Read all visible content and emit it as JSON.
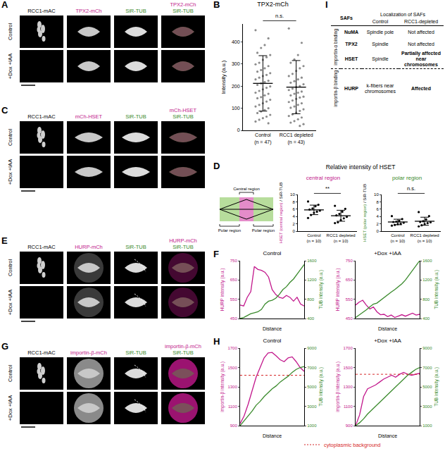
{
  "figure": {
    "image_panels": [
      {
        "letter": "A",
        "columns": [
          [
            "RCC1-mAC"
          ],
          [
            "TPX2-mCh"
          ],
          [
            "SiR-TUB"
          ],
          [
            "TPX2-mCh",
            "SiR-TUB"
          ]
        ],
        "rows": [
          "Control",
          "+Dox +IAA"
        ]
      },
      {
        "letter": "C",
        "columns": [
          [
            "RCC1-mAC"
          ],
          [
            "mCh-HSET"
          ],
          [
            "SiR-TUB"
          ],
          [
            "mCh-HSET",
            "SiR-TUB"
          ]
        ],
        "rows": [
          "Control",
          "+Dox +IAA"
        ]
      },
      {
        "letter": "E",
        "columns": [
          [
            "RCC1-mAC"
          ],
          [
            "HURP-mCh"
          ],
          [
            "SiR-TUB"
          ],
          [
            "HURP-mCh",
            "SiR-TUB"
          ]
        ],
        "rows": [
          "Control",
          "+Dox +IAA"
        ]
      },
      {
        "letter": "G",
        "columns": [
          [
            "RCC1-mAC"
          ],
          [
            "importin-β-mCh"
          ],
          [
            "SiR-TUB"
          ],
          [
            "importin-β-mCh",
            "SiR-TUB"
          ]
        ],
        "rows": [
          "Control",
          "+Dox +IAA"
        ]
      }
    ],
    "schematic": {
      "letter": "D",
      "title": "Relative intensity of HSET",
      "central_label": "Central region",
      "polar_labels": [
        "Polar region",
        "Polar region"
      ]
    },
    "table": {
      "letter": "I",
      "header": {
        "saf": "SAFs",
        "localization": "Localization of SAFs",
        "control": "Control",
        "depleted": "RCC1-depleted"
      },
      "groups": [
        {
          "label": "importin-α binding",
          "rows": [
            {
              "saf": "NuMA",
              "control": "Spindle pole",
              "depleted": "Not affected",
              "emphasis": false
            },
            {
              "saf": "TPX2",
              "control": "Spindle",
              "depleted": "Not affected",
              "emphasis": false
            },
            {
              "saf": "HSET",
              "control": "Spindle",
              "depleted": "Partially affected near chromosomes",
              "emphasis": true
            }
          ]
        },
        {
          "label": "importin-β binding",
          "rows": [
            {
              "saf": "HURP",
              "control": "k-fibers near chromosomes",
              "depleted": "Affected",
              "emphasis": true
            }
          ]
        }
      ]
    },
    "reference_label": "cytoplasmic background"
  },
  "chart_data": [
    {
      "panel": "B",
      "type": "scatter",
      "title": "TPX2-mCh",
      "y_label": [
        "Intensity (a.u.)"
      ],
      "categories": [
        "Control",
        "RCC1 depleted"
      ],
      "n_labels": [
        "(n = 47)",
        "(n = 43)"
      ],
      "values": [
        [
          452,
          415,
          385,
          372,
          350,
          340,
          330,
          318,
          305,
          298,
          290,
          280,
          272,
          265,
          258,
          250,
          245,
          238,
          230,
          224,
          218,
          212,
          205,
          198,
          192,
          185,
          178,
          170,
          165,
          158,
          150,
          145,
          138,
          130,
          122,
          115,
          108,
          100,
          92,
          85,
          78,
          70,
          62,
          55,
          48,
          40,
          32
        ],
        [
          460,
          395,
          340,
          320,
          305,
          290,
          280,
          268,
          255,
          245,
          238,
          230,
          222,
          215,
          208,
          200,
          195,
          188,
          182,
          175,
          170,
          165,
          158,
          152,
          148,
          142,
          135,
          128,
          122,
          115,
          108,
          102,
          95,
          88,
          80,
          72,
          65,
          58,
          50,
          42,
          35,
          28,
          20
        ]
      ],
      "mean": [
        212,
        195
      ],
      "sd": [
        125,
        120
      ],
      "color": "#8c8c8c",
      "ylim": [
        0,
        480
      ],
      "yticks": [
        0,
        100,
        200,
        300,
        400
      ],
      "annotations": [
        {
          "text": "n.s.",
          "between": [
            0,
            1
          ]
        }
      ]
    },
    {
      "type": "scatter",
      "title": "central region",
      "y_label": [
        "HSET (central region)",
        " / SiR-TUB"
      ],
      "categories": [
        "Control",
        "RCC1 depleted"
      ],
      "n_labels": [
        "(n = 10)",
        "(n = 10)"
      ],
      "values": [
        [
          8.1,
          7.2,
          6.8,
          6.2,
          5.9,
          5.6,
          5.3,
          5.0,
          4.4,
          3.6
        ],
        [
          6.9,
          6.1,
          5.3,
          4.7,
          4.3,
          3.9,
          3.5,
          3.0,
          2.4,
          2.2
        ]
      ],
      "mean": [
        5.8,
        4.2
      ],
      "sd": [
        1.3,
        1.5
      ],
      "color": "#000000",
      "ylim": [
        0,
        10
      ],
      "yticks": [
        0,
        2,
        4,
        6,
        8,
        10
      ],
      "annotations": [
        {
          "text": "**",
          "between": [
            0,
            1
          ]
        }
      ]
    },
    {
      "type": "scatter",
      "title": "polar region",
      "y_label": [
        "HSET (polar region)",
        " / SiR-TUB"
      ],
      "categories": [
        "Control",
        "RCC1 depleted"
      ],
      "n_labels": [
        "(n = 10)",
        "(n = 10)"
      ],
      "values": [
        [
          4.1,
          3.3,
          2.8,
          2.6,
          2.5,
          2.3,
          2.0,
          1.9,
          1.7,
          1.5
        ],
        [
          5.2,
          4.1,
          3.2,
          2.7,
          2.5,
          2.4,
          2.2,
          1.9,
          1.6,
          1.3
        ]
      ],
      "mean": [
        2.5,
        2.7
      ],
      "sd": [
        0.75,
        1.1
      ],
      "color": "#000000",
      "ylim": [
        0,
        10
      ],
      "yticks": [
        0,
        2,
        4,
        6,
        8,
        10
      ],
      "annotations": [
        {
          "text": "n.s.",
          "between": [
            0,
            1
          ]
        }
      ]
    },
    {
      "panel": "F",
      "type": "line",
      "title": "Control",
      "x_label": "Distance",
      "x": [
        0,
        1,
        2,
        3,
        4,
        5,
        6,
        7,
        8,
        9,
        10,
        11,
        12,
        13,
        14,
        15,
        16,
        17,
        18
      ],
      "xlim": [
        0,
        18
      ],
      "xticks": [],
      "series": [
        {
          "name": "HURP intensity (a.u.)",
          "color": "#c2188c",
          "values": [
            520,
            515,
            560,
            590,
            720,
            705,
            700,
            690,
            665,
            600,
            575,
            560,
            555,
            570,
            560,
            540,
            560,
            525,
            515
          ]
        },
        {
          "name": "TUB intensity (a.u.)",
          "color": "#3a8a2c",
          "axis": "y2",
          "values": [
            400,
            420,
            460,
            500,
            520,
            540,
            590,
            700,
            760,
            780,
            820,
            900,
            1000,
            1060,
            1150,
            1220,
            1320,
            1420,
            1520
          ]
        }
      ],
      "ylim": [
        450,
        750
      ],
      "yticks": [
        450,
        550,
        650,
        750
      ],
      "y2lim": [
        400,
        1600
      ],
      "y2ticks": [
        400,
        800,
        1200,
        1600
      ]
    },
    {
      "type": "line",
      "title": "+Dox +IAA",
      "x_label": "Distance",
      "x": [
        0,
        1,
        2,
        3,
        4,
        5,
        6,
        7,
        8,
        9,
        10,
        11,
        12,
        13,
        14,
        15,
        16,
        17,
        18
      ],
      "xlim": [
        0,
        18
      ],
      "xticks": [],
      "series": [
        {
          "name": "HURP intensity (a.u.)",
          "color": "#c2188c",
          "values": [
            520,
            535,
            545,
            520,
            500,
            510,
            485,
            470,
            472,
            460,
            468,
            455,
            462,
            470,
            462,
            470,
            478,
            468,
            472
          ]
        },
        {
          "name": "TUB intensity (a.u.)",
          "color": "#3a8a2c",
          "axis": "y2",
          "values": [
            420,
            470,
            520,
            580,
            640,
            700,
            720,
            780,
            830,
            900,
            950,
            1000,
            1060,
            1120,
            1200,
            1300,
            1400,
            1500,
            1600
          ]
        }
      ],
      "ylim": [
        450,
        750
      ],
      "yticks": [
        450,
        550,
        650,
        750
      ],
      "y2lim": [
        400,
        1600
      ],
      "y2ticks": [
        400,
        800,
        1200,
        1600
      ]
    },
    {
      "panel": "H",
      "type": "line",
      "title": "Control",
      "x_label": "Distance",
      "x": [
        0,
        1,
        2,
        3,
        4,
        5,
        6,
        7,
        8,
        9,
        10,
        11,
        12,
        13,
        14,
        15,
        16
      ],
      "xlim": [
        0,
        16
      ],
      "xticks": [],
      "series": [
        {
          "name": "importin-β intensity (a.u.)",
          "color": "#c2188c",
          "values": [
            920,
            1000,
            1120,
            1260,
            1400,
            1500,
            1600,
            1650,
            1655,
            1620,
            1580,
            1560,
            1600,
            1610,
            1560,
            1500,
            1460
          ]
        },
        {
          "name": "TUB intensity (a.u.)",
          "color": "#3a8a2c",
          "axis": "y2",
          "values": [
            1000,
            1500,
            2000,
            2500,
            3100,
            3500,
            4000,
            4400,
            4800,
            5100,
            5500,
            5800,
            6100,
            6500,
            6800,
            7000,
            7100
          ]
        }
      ],
      "ylim": [
        900,
        1700
      ],
      "yticks": [
        900,
        1100,
        1300,
        1500,
        1700
      ],
      "y2lim": [
        1000,
        9000
      ],
      "y2ticks": [
        1000,
        3000,
        5000,
        7000,
        9000
      ],
      "reference_line": 1420
    },
    {
      "type": "line",
      "title": "+Dox +IAA",
      "x_label": "Distance",
      "x": [
        0,
        1,
        2,
        3,
        4,
        5,
        6,
        7,
        8,
        9,
        10,
        11,
        12,
        13,
        14,
        15,
        16
      ],
      "xlim": [
        0,
        16
      ],
      "xticks": [],
      "series": [
        {
          "name": "importin-β intensity (a.u.)",
          "color": "#c2188c",
          "values": [
            900,
            1010,
            1200,
            1280,
            1300,
            1320,
            1350,
            1380,
            1400,
            1420,
            1400,
            1430,
            1450,
            1430,
            1420,
            1430,
            1440
          ]
        },
        {
          "name": "TUB intensity (a.u.)",
          "color": "#3a8a2c",
          "axis": "y2",
          "values": [
            1000,
            1300,
            1700,
            2200,
            2600,
            3000,
            3400,
            3800,
            4200,
            4600,
            5000,
            5400,
            5800,
            6200,
            6500,
            6800,
            7000
          ]
        }
      ],
      "ylim": [
        900,
        1700
      ],
      "yticks": [
        900,
        1100,
        1300,
        1500,
        1700
      ],
      "y2lim": [
        1000,
        9000
      ],
      "y2ticks": [
        1000,
        3000,
        5000,
        7000,
        9000
      ],
      "reference_line": 1430
    }
  ]
}
